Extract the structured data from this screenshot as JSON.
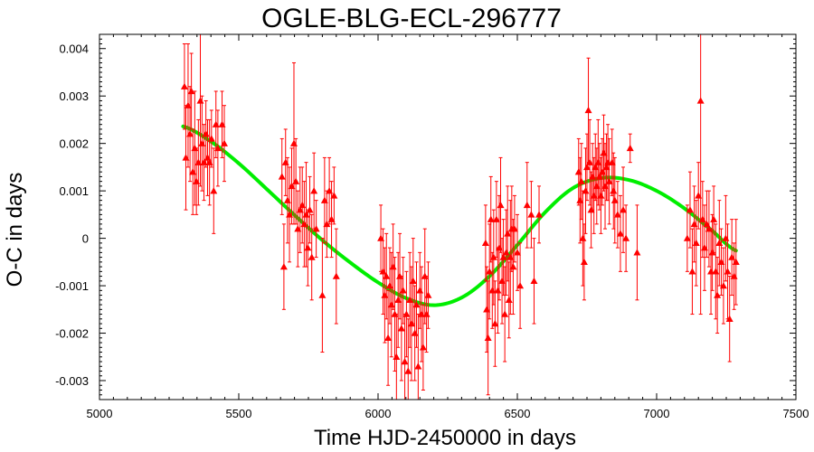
{
  "chart_data": {
    "type": "scatter",
    "title": "OGLE-BLG-ECL-296777",
    "xlabel": "Time HJD-2450000 in days",
    "ylabel": "O-C in days",
    "xlim": [
      5000,
      7500
    ],
    "ylim": [
      -0.0034,
      0.0043
    ],
    "x_ticks": [
      5000,
      5500,
      6000,
      6500,
      7000,
      7500
    ],
    "x_tick_labels": [
      "5000",
      "5500",
      "6000",
      "6500",
      "7000",
      "7500"
    ],
    "y_ticks": [
      -0.003,
      -0.002,
      -0.001,
      0,
      0.001,
      0.002,
      0.003,
      0.004
    ],
    "y_tick_labels": [
      "-0.003",
      "-0.002",
      "-0.001",
      "0",
      "0.001",
      "0.002",
      "0.003",
      "0.004"
    ],
    "grid": false,
    "legend": "none",
    "series": [
      {
        "kind": "observations",
        "marker": "triangle",
        "color": "#ff0000",
        "points": [
          {
            "x": 5305,
            "y": 0.0032,
            "err": 0.0009
          },
          {
            "x": 5310,
            "y": 0.0017,
            "err": 0.0011
          },
          {
            "x": 5318,
            "y": 0.0028,
            "err": 0.0013
          },
          {
            "x": 5325,
            "y": 0.0022,
            "err": 0.001
          },
          {
            "x": 5330,
            "y": 0.0031,
            "err": 0.0008
          },
          {
            "x": 5335,
            "y": 0.0014,
            "err": 0.0009
          },
          {
            "x": 5342,
            "y": 0.0019,
            "err": 0.0012
          },
          {
            "x": 5348,
            "y": 0.0012,
            "err": 0.0007
          },
          {
            "x": 5355,
            "y": 0.0016,
            "err": 0.0009
          },
          {
            "x": 5362,
            "y": 0.0029,
            "err": 0.0018
          },
          {
            "x": 5368,
            "y": 0.002,
            "err": 0.001
          },
          {
            "x": 5375,
            "y": 0.0016,
            "err": 0.0008
          },
          {
            "x": 5382,
            "y": 0.0022,
            "err": 0.0007
          },
          {
            "x": 5388,
            "y": 0.0017,
            "err": 0.0008
          },
          {
            "x": 5395,
            "y": 0.0016,
            "err": 0.0009
          },
          {
            "x": 5402,
            "y": 0.0021,
            "err": 0.0006
          },
          {
            "x": 5410,
            "y": 0.001,
            "err": 0.0009
          },
          {
            "x": 5418,
            "y": 0.0024,
            "err": 0.0007
          },
          {
            "x": 5425,
            "y": 0.0019,
            "err": 0.0008
          },
          {
            "x": 5440,
            "y": 0.0024,
            "err": 0.0007
          },
          {
            "x": 5448,
            "y": 0.002,
            "err": 0.0008
          },
          {
            "x": 5655,
            "y": 0.0013,
            "err": 0.0008
          },
          {
            "x": 5662,
            "y": -0.0006,
            "err": 0.0009
          },
          {
            "x": 5668,
            "y": 0.0016,
            "err": 0.0007
          },
          {
            "x": 5675,
            "y": 0.0008,
            "err": 0.0009
          },
          {
            "x": 5682,
            "y": 0.0005,
            "err": 0.001
          },
          {
            "x": 5690,
            "y": 0.0011,
            "err": 0.0008
          },
          {
            "x": 5698,
            "y": 0.002,
            "err": 0.0017
          },
          {
            "x": 5705,
            "y": 0.0012,
            "err": 0.0009
          },
          {
            "x": 5712,
            "y": 0.0002,
            "err": 0.0008
          },
          {
            "x": 5720,
            "y": 0.0006,
            "err": 0.0009
          },
          {
            "x": 5728,
            "y": 0.0007,
            "err": 0.0008
          },
          {
            "x": 5735,
            "y": 0.0003,
            "err": 0.0009
          },
          {
            "x": 5742,
            "y": 0.0005,
            "err": 0.0011
          },
          {
            "x": 5748,
            "y": -0.0002,
            "err": 0.0008
          },
          {
            "x": 5755,
            "y": 0.0006,
            "err": 0.0007
          },
          {
            "x": 5762,
            "y": -0.0004,
            "err": 0.0009
          },
          {
            "x": 5770,
            "y": 0.001,
            "err": 0.0008
          },
          {
            "x": 5778,
            "y": 0.0002,
            "err": 0.0006
          },
          {
            "x": 5800,
            "y": -0.0012,
            "err": 0.0012
          },
          {
            "x": 5808,
            "y": 0.0008,
            "err": 0.0009
          },
          {
            "x": 5816,
            "y": 0.0003,
            "err": 0.0007
          },
          {
            "x": 5825,
            "y": 0.001,
            "err": 0.0007
          },
          {
            "x": 5833,
            "y": 0.0004,
            "err": 0.0008
          },
          {
            "x": 5842,
            "y": 0.0009,
            "err": 0.0006
          },
          {
            "x": 5850,
            "y": -0.0008,
            "err": 0.001
          },
          {
            "x": 6010,
            "y": 0.0,
            "err": 0.0007
          },
          {
            "x": 6018,
            "y": -0.0007,
            "err": 0.0009
          },
          {
            "x": 6024,
            "y": -0.0012,
            "err": 0.001
          },
          {
            "x": 6030,
            "y": -0.0008,
            "err": 0.0009
          },
          {
            "x": 6036,
            "y": -0.0021,
            "err": 0.001
          },
          {
            "x": 6042,
            "y": -0.001,
            "err": 0.0008
          },
          {
            "x": 6048,
            "y": -0.0014,
            "err": 0.0011
          },
          {
            "x": 6054,
            "y": -0.0006,
            "err": 0.0009
          },
          {
            "x": 6060,
            "y": -0.0016,
            "err": 0.0012
          },
          {
            "x": 6066,
            "y": -0.0025,
            "err": 0.0009
          },
          {
            "x": 6072,
            "y": -0.0013,
            "err": 0.001
          },
          {
            "x": 6078,
            "y": -0.0008,
            "err": 0.0009
          },
          {
            "x": 6084,
            "y": -0.0019,
            "err": 0.0011
          },
          {
            "x": 6090,
            "y": -0.0011,
            "err": 0.0007
          },
          {
            "x": 6096,
            "y": -0.0026,
            "err": 0.001
          },
          {
            "x": 6102,
            "y": -0.0016,
            "err": 0.0009
          },
          {
            "x": 6108,
            "y": -0.0028,
            "err": 0.0011
          },
          {
            "x": 6114,
            "y": -0.0013,
            "err": 0.001
          },
          {
            "x": 6120,
            "y": -0.0018,
            "err": 0.0012
          },
          {
            "x": 6126,
            "y": -0.0009,
            "err": 0.0009
          },
          {
            "x": 6132,
            "y": -0.002,
            "err": 0.001
          },
          {
            "x": 6138,
            "y": -0.0014,
            "err": 0.0009
          },
          {
            "x": 6144,
            "y": -0.0027,
            "err": 0.0011
          },
          {
            "x": 6150,
            "y": -0.0011,
            "err": 0.0008
          },
          {
            "x": 6156,
            "y": -0.0016,
            "err": 0.001
          },
          {
            "x": 6162,
            "y": -0.0023,
            "err": 0.0009
          },
          {
            "x": 6168,
            "y": -0.0008,
            "err": 0.001
          },
          {
            "x": 6174,
            "y": -0.0016,
            "err": 0.0008
          },
          {
            "x": 6180,
            "y": -0.0012,
            "err": 0.0007
          },
          {
            "x": 6386,
            "y": -0.0001,
            "err": 0.0008
          },
          {
            "x": 6390,
            "y": -0.0015,
            "err": 0.0009
          },
          {
            "x": 6395,
            "y": -0.0021,
            "err": 0.0012
          },
          {
            "x": 6400,
            "y": -0.0007,
            "err": 0.001
          },
          {
            "x": 6405,
            "y": 0.0004,
            "err": 0.0009
          },
          {
            "x": 6410,
            "y": -0.0011,
            "err": 0.0008
          },
          {
            "x": 6415,
            "y": -0.0004,
            "err": 0.001
          },
          {
            "x": 6420,
            "y": -0.0018,
            "err": 0.0009
          },
          {
            "x": 6425,
            "y": 0.0004,
            "err": 0.0008
          },
          {
            "x": 6430,
            "y": -0.0011,
            "err": 0.0009
          },
          {
            "x": 6435,
            "y": -0.0002,
            "err": 0.0011
          },
          {
            "x": 6440,
            "y": 0.0007,
            "err": 0.001
          },
          {
            "x": 6445,
            "y": -0.0009,
            "err": 0.0009
          },
          {
            "x": 6450,
            "y": -0.0004,
            "err": 0.0008
          },
          {
            "x": 6455,
            "y": -0.0016,
            "err": 0.001
          },
          {
            "x": 6460,
            "y": -0.0003,
            "err": 0.0009
          },
          {
            "x": 6465,
            "y": 0.0001,
            "err": 0.001
          },
          {
            "x": 6470,
            "y": -0.0013,
            "err": 0.0008
          },
          {
            "x": 6475,
            "y": -0.0004,
            "err": 0.0012
          },
          {
            "x": 6480,
            "y": 0.0002,
            "err": 0.0009
          },
          {
            "x": 6485,
            "y": -0.0006,
            "err": 0.001
          },
          {
            "x": 6490,
            "y": 0.0002,
            "err": 0.0007
          },
          {
            "x": 6500,
            "y": -0.0003,
            "err": 0.0008
          },
          {
            "x": 6510,
            "y": -0.001,
            "err": 0.0009
          },
          {
            "x": 6535,
            "y": 0.0007,
            "err": 0.0009
          },
          {
            "x": 6550,
            "y": 0.0005,
            "err": 0.0007
          },
          {
            "x": 6560,
            "y": -0.0009,
            "err": 0.0009
          },
          {
            "x": 6578,
            "y": 0.0005,
            "err": 0.0006
          },
          {
            "x": 6720,
            "y": 0.0014,
            "err": 0.0007
          },
          {
            "x": 6725,
            "y": 0.0008,
            "err": 0.0009
          },
          {
            "x": 6730,
            "y": 0.0012,
            "err": 0.0008
          },
          {
            "x": 6735,
            "y": 0.0,
            "err": 0.001
          },
          {
            "x": 6740,
            "y": -0.0005,
            "err": 0.0008
          },
          {
            "x": 6745,
            "y": 0.001,
            "err": 0.0009
          },
          {
            "x": 6750,
            "y": 0.0015,
            "err": 0.0007
          },
          {
            "x": 6755,
            "y": 0.0027,
            "err": 0.0011
          },
          {
            "x": 6760,
            "y": 0.0016,
            "err": 0.0009
          },
          {
            "x": 6765,
            "y": 0.0006,
            "err": 0.0008
          },
          {
            "x": 6770,
            "y": 0.0013,
            "err": 0.0007
          },
          {
            "x": 6775,
            "y": 0.0009,
            "err": 0.0008
          },
          {
            "x": 6780,
            "y": 0.0015,
            "err": 0.0007
          },
          {
            "x": 6785,
            "y": 0.0011,
            "err": 0.0008
          },
          {
            "x": 6790,
            "y": 0.0016,
            "err": 0.0009
          },
          {
            "x": 6795,
            "y": 0.0013,
            "err": 0.0007
          },
          {
            "x": 6800,
            "y": 0.0009,
            "err": 0.0008
          },
          {
            "x": 6805,
            "y": 0.0014,
            "err": 0.0007
          },
          {
            "x": 6810,
            "y": 0.0018,
            "err": 0.0008
          },
          {
            "x": 6815,
            "y": 0.0011,
            "err": 0.0009
          },
          {
            "x": 6820,
            "y": 0.0015,
            "err": 0.0007
          },
          {
            "x": 6825,
            "y": 0.0016,
            "err": 0.0008
          },
          {
            "x": 6830,
            "y": 0.0012,
            "err": 0.0009
          },
          {
            "x": 6840,
            "y": 0.0016,
            "err": 0.0007
          },
          {
            "x": 6845,
            "y": 0.001,
            "err": 0.0008
          },
          {
            "x": 6850,
            "y": 0.0008,
            "err": 0.0009
          },
          {
            "x": 6860,
            "y": 0.0005,
            "err": 0.0007
          },
          {
            "x": 6870,
            "y": 0.0001,
            "err": 0.0008
          },
          {
            "x": 6880,
            "y": 0.0006,
            "err": 0.0009
          },
          {
            "x": 6890,
            "y": 0.0,
            "err": 0.0007
          },
          {
            "x": 6905,
            "y": 0.0019,
            "err": 0.0003
          },
          {
            "x": 6930,
            "y": -0.0003,
            "err": 0.001
          },
          {
            "x": 7110,
            "y": 0.0,
            "err": 0.0007
          },
          {
            "x": 7120,
            "y": 0.0006,
            "err": 0.0008
          },
          {
            "x": 7128,
            "y": -0.0007,
            "err": 0.0009
          },
          {
            "x": 7135,
            "y": 0.0003,
            "err": 0.0008
          },
          {
            "x": 7142,
            "y": -0.0001,
            "err": 0.0009
          },
          {
            "x": 7150,
            "y": 0.0009,
            "err": 0.0007
          },
          {
            "x": 7158,
            "y": 0.0029,
            "err": 0.0045
          },
          {
            "x": 7165,
            "y": 0.0004,
            "err": 0.0008
          },
          {
            "x": 7172,
            "y": -0.0002,
            "err": 0.0009
          },
          {
            "x": 7180,
            "y": 0.0003,
            "err": 0.0007
          },
          {
            "x": 7188,
            "y": 0.0002,
            "err": 0.0008
          },
          {
            "x": 7195,
            "y": -0.0007,
            "err": 0.0009
          },
          {
            "x": 7200,
            "y": -0.0003,
            "err": 0.0008
          },
          {
            "x": 7205,
            "y": 0.0004,
            "err": 0.0007
          },
          {
            "x": 7212,
            "y": -0.0007,
            "err": 0.001
          },
          {
            "x": 7218,
            "y": -0.0012,
            "err": 0.0008
          },
          {
            "x": 7225,
            "y": -0.0001,
            "err": 0.0009
          },
          {
            "x": 7232,
            "y": -0.0005,
            "err": 0.0007
          },
          {
            "x": 7240,
            "y": -0.001,
            "err": 0.0008
          },
          {
            "x": 7248,
            "y": 0.0,
            "err": 0.0009
          },
          {
            "x": 7255,
            "y": -0.0007,
            "err": 0.001
          },
          {
            "x": 7262,
            "y": -0.0017,
            "err": 0.0009
          },
          {
            "x": 7270,
            "y": -0.0004,
            "err": 0.0008
          },
          {
            "x": 7278,
            "y": -0.0008,
            "err": 0.0007
          },
          {
            "x": 7285,
            "y": -0.0005,
            "err": 0.0009
          }
        ]
      },
      {
        "kind": "fit",
        "color": "#00ee00",
        "x_range": [
          5300,
          7285
        ],
        "x": [
          5300,
          5400,
          5500,
          5600,
          5700,
          5800,
          5900,
          6000,
          6100,
          6200,
          6300,
          6400,
          6500,
          6600,
          6700,
          6800,
          6900,
          7000,
          7100,
          7200,
          7285
        ],
        "y": [
          0.00236,
          0.00204,
          0.00158,
          0.00104,
          0.00049,
          -4e-05,
          -0.00051,
          -0.00093,
          -0.00126,
          -0.00141,
          -0.00125,
          -0.0008,
          -0.00014,
          0.00055,
          0.00106,
          0.00127,
          0.00123,
          0.001,
          0.00063,
          0.00016,
          -0.00026
        ]
      }
    ]
  }
}
